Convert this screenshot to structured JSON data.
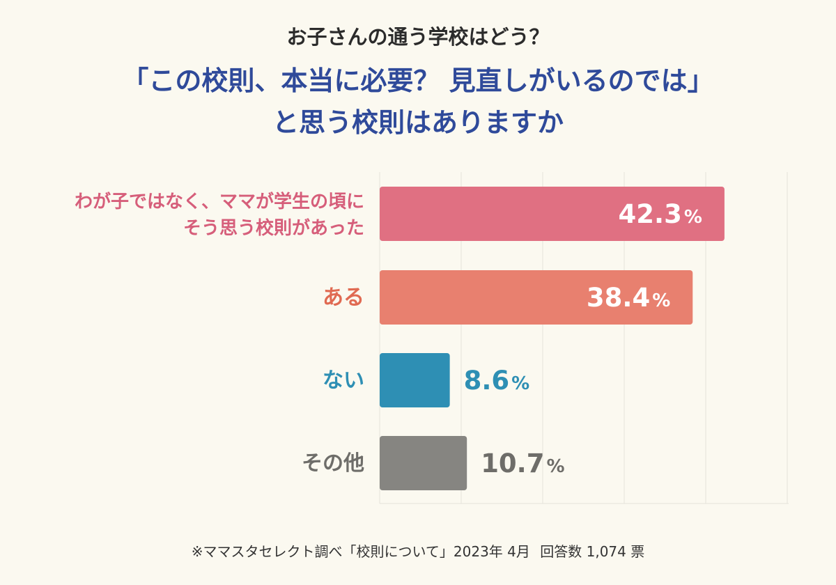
{
  "header": {
    "subtitle": "お子さんの通う学校はどう？",
    "title_line1": "「この校則、本当に必要？ 見直しがいるのでは」",
    "title_line2": "と思う校則はありますか"
  },
  "chart_data": {
    "type": "bar",
    "orientation": "horizontal",
    "unit": "%",
    "categories": [
      [
        "わが子ではなく、ママが学生の頃に",
        "そう思う校則があった"
      ],
      [
        "ある"
      ],
      [
        "ない"
      ],
      [
        "その他"
      ]
    ],
    "values": [
      42.3,
      38.4,
      8.6,
      10.7
    ],
    "value_labels": [
      "42.3",
      "38.4",
      "8.6",
      "10.7"
    ],
    "colors": [
      "#e07082",
      "#e8806f",
      "#2e8fb4",
      "#868581"
    ],
    "label_colors": [
      "#d65e7a",
      "#e06a52",
      "#2e8fb4",
      "#6e6d69"
    ],
    "xlim": [
      0,
      50
    ],
    "grid": true
  },
  "footer": {
    "source": "※ママスタセレクト調べ「校則について」2023年 4月",
    "responses": "回答数 1,074 票"
  }
}
